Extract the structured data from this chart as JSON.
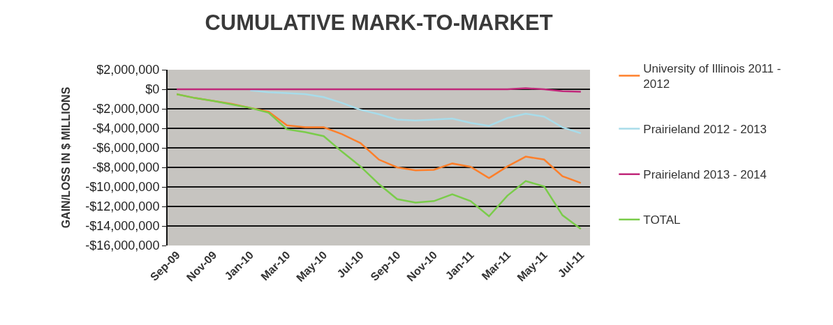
{
  "chart_data": {
    "type": "line",
    "title": "CUMULATIVE MARK-TO-MARKET",
    "ylabel": "GAIN/LOSS IN $ MILLIONS",
    "categories": [
      "Sep-09",
      null,
      "Nov-09",
      null,
      "Jan-10",
      null,
      "Mar-10",
      null,
      "May-10",
      null,
      "Jul-10",
      null,
      "Sep-10",
      null,
      "Nov-10",
      null,
      "Jan-11",
      null,
      "Mar-11",
      null,
      "May-11",
      null,
      "Jul-11"
    ],
    "series": [
      {
        "name": "University of Illinois 2011 - 2012",
        "color": "#ff7f2a",
        "values": [
          -500000,
          -900000,
          -1200000,
          -1500000,
          -1900000,
          -2300000,
          -3700000,
          -3900000,
          -3900000,
          -4600000,
          -5500000,
          -7200000,
          -8000000,
          -8300000,
          -8250000,
          -7600000,
          -7950000,
          -9100000,
          -7900000,
          -6900000,
          -7200000,
          -8900000,
          -9600000
        ]
      },
      {
        "name": "Prairieland 2012 - 2013",
        "color": "#a8dcea",
        "values": [
          null,
          null,
          null,
          null,
          -100000,
          -300000,
          -400000,
          -500000,
          -800000,
          -1400000,
          -2100000,
          -2550000,
          -3100000,
          -3200000,
          -3100000,
          -3000000,
          -3450000,
          -3750000,
          -2950000,
          -2500000,
          -2800000,
          -3900000,
          -4500000
        ]
      },
      {
        "name": "Prairieland 2013 - 2014",
        "color": "#c0287a",
        "values": [
          0,
          0,
          0,
          0,
          0,
          0,
          0,
          0,
          0,
          0,
          0,
          0,
          0,
          0,
          0,
          0,
          0,
          0,
          0,
          100000,
          0,
          -200000,
          -250000
        ]
      },
      {
        "name": "TOTAL",
        "color": "#7acc4a",
        "values": [
          -500000,
          -900000,
          -1200000,
          -1550000,
          -1900000,
          -2400000,
          -4100000,
          -4400000,
          -4800000,
          -6400000,
          -7900000,
          -9700000,
          -11250000,
          -11600000,
          -11450000,
          -10750000,
          -11450000,
          -13000000,
          -10900000,
          -9400000,
          -9950000,
          -12900000,
          -14300000
        ]
      }
    ],
    "ylim": [
      -16000000,
      2000000
    ],
    "yticks": [
      {
        "value": 2000000,
        "label": "$2,000,000"
      },
      {
        "value": 0,
        "label": "$0"
      },
      {
        "value": -2000000,
        "label": "-$2,000,000"
      },
      {
        "value": -4000000,
        "label": "-$4,000,000"
      },
      {
        "value": -6000000,
        "label": "-$6,000,000"
      },
      {
        "value": -8000000,
        "label": "-$8,000,000"
      },
      {
        "value": -10000000,
        "label": "-$10,000,000"
      },
      {
        "value": -12000000,
        "label": "-$12,000,000"
      },
      {
        "value": -14000000,
        "label": "-$14,000,000"
      },
      {
        "value": -16000000,
        "label": "-$16,000,000"
      }
    ],
    "grid": "y",
    "legend": "right",
    "marker": "none",
    "line_style": "solid"
  }
}
